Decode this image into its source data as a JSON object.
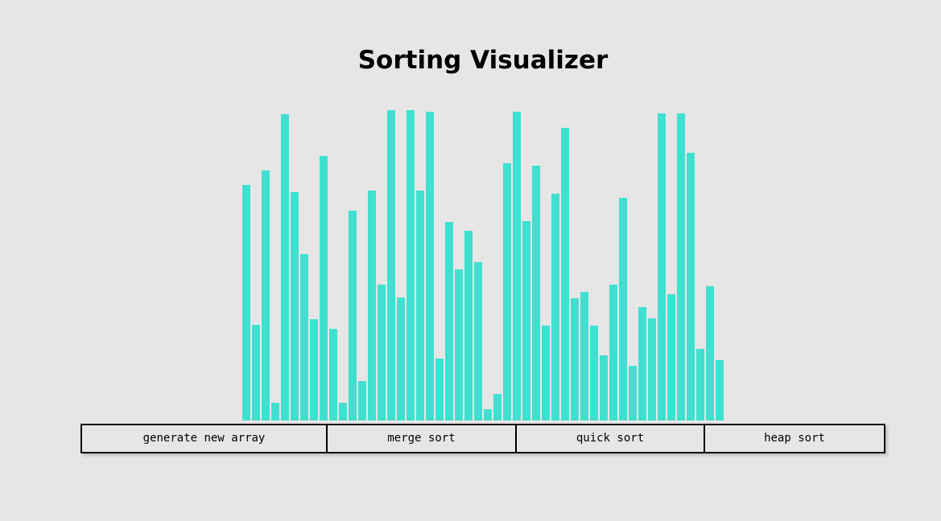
{
  "title": "Sorting Visualizer",
  "array": {
    "bar_color": "#40e0d0",
    "max_value": 386,
    "values": [
      293,
      119,
      311,
      22,
      381,
      284,
      207,
      126,
      329,
      114,
      22,
      261,
      49,
      286,
      169,
      386,
      153,
      386,
      286,
      384,
      77,
      247,
      188,
      236,
      197,
      14,
      33,
      320,
      384,
      248,
      317,
      118,
      282,
      364,
      152,
      160,
      118,
      81,
      169,
      277,
      68,
      141,
      127,
      382,
      157,
      382,
      333,
      89,
      167,
      75
    ]
  },
  "toolbar": {
    "generate_label": "generate new array",
    "merge_label": "merge sort",
    "quick_label": "quick sort",
    "heap_label": "heap sort"
  }
}
